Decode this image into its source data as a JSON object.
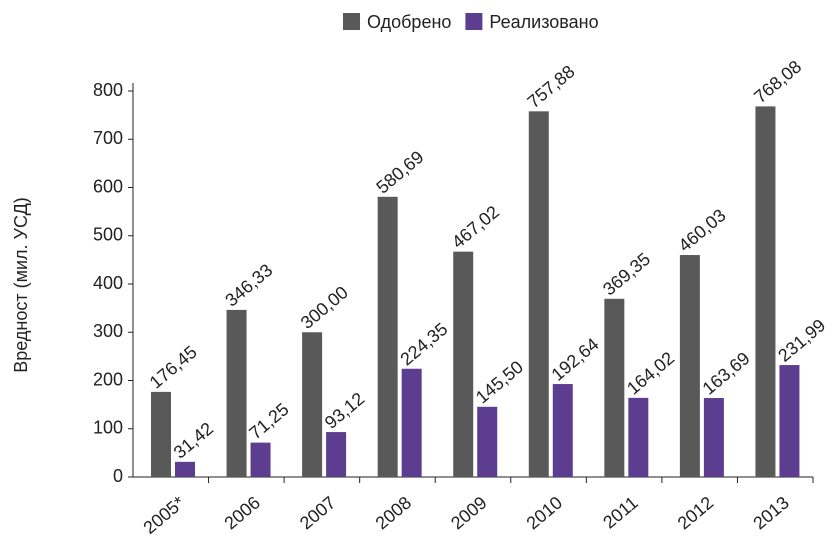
{
  "chart_data": {
    "type": "bar",
    "y_label": "Вредност (мил. УСД)",
    "categories": [
      "2005*",
      "2006",
      "2007",
      "2008",
      "2009",
      "2010",
      "2011",
      "2012",
      "2013"
    ],
    "series": [
      {
        "name": "Одобрено",
        "color": "#595959",
        "values": [
          176.45,
          346.33,
          300.0,
          580.69,
          467.02,
          757.88,
          369.35,
          460.03,
          768.08
        ],
        "value_labels": [
          "176,45",
          "346,33",
          "300,00",
          "580,69",
          "467,02",
          "757,88",
          "369,35",
          "460,03",
          "768,08"
        ]
      },
      {
        "name": "Реализовано",
        "color": "#5c3d8f",
        "values": [
          31.42,
          71.25,
          93.12,
          224.35,
          145.5,
          192.64,
          164.02,
          163.69,
          231.99
        ],
        "value_labels": [
          "31,42",
          "71,25",
          "93,12",
          "224,35",
          "145,50",
          "192,64",
          "164,02",
          "163,69",
          "231,99"
        ]
      }
    ],
    "ylim": [
      0,
      800
    ],
    "yticks": [
      0,
      100,
      200,
      300,
      400,
      500,
      600,
      700,
      800
    ],
    "legend": "top",
    "grid": false
  }
}
